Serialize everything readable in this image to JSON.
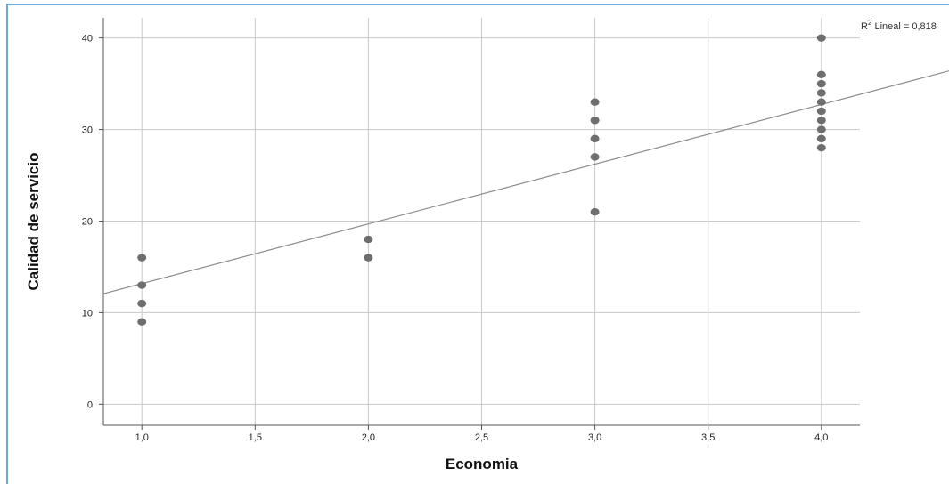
{
  "chart_data": {
    "type": "scatter",
    "xlabel": "Economia",
    "ylabel": "Calidad de servicio",
    "xlim": [
      0.83,
      4.17
    ],
    "ylim": [
      -2.3,
      42.2
    ],
    "x_ticks": [
      1.0,
      1.5,
      2.0,
      2.5,
      3.0,
      3.5,
      4.0
    ],
    "x_tick_labels": [
      "1,0",
      "1,5",
      "2,0",
      "2,5",
      "3,0",
      "3,5",
      "4,0"
    ],
    "y_ticks": [
      0,
      10,
      20,
      30,
      40
    ],
    "y_tick_labels": [
      "0",
      "10",
      "20",
      "30",
      "40"
    ],
    "grid": true,
    "points": [
      {
        "x": 1,
        "y": 16
      },
      {
        "x": 1,
        "y": 13
      },
      {
        "x": 1,
        "y": 11
      },
      {
        "x": 1,
        "y": 9
      },
      {
        "x": 2,
        "y": 18
      },
      {
        "x": 2,
        "y": 16
      },
      {
        "x": 3,
        "y": 33
      },
      {
        "x": 3,
        "y": 31
      },
      {
        "x": 3,
        "y": 29
      },
      {
        "x": 3,
        "y": 27
      },
      {
        "x": 3,
        "y": 21
      },
      {
        "x": 4,
        "y": 40
      },
      {
        "x": 4,
        "y": 36
      },
      {
        "x": 4,
        "y": 35
      },
      {
        "x": 4,
        "y": 34
      },
      {
        "x": 4,
        "y": 33
      },
      {
        "x": 4,
        "y": 32
      },
      {
        "x": 4,
        "y": 31
      },
      {
        "x": 4,
        "y": 30
      },
      {
        "x": 4,
        "y": 29
      },
      {
        "x": 4,
        "y": 28
      }
    ],
    "fit_line": {
      "intercept": 6.65,
      "slope": 6.52
    },
    "fit_label": {
      "prefix": "R",
      "superscript": "2",
      "text": " Lineal = 0,818"
    },
    "colors": {
      "points": "#6e6e6e",
      "fit_line": "#8c8c8c",
      "grid": "#c8c8c8",
      "axis": "#555555"
    }
  }
}
